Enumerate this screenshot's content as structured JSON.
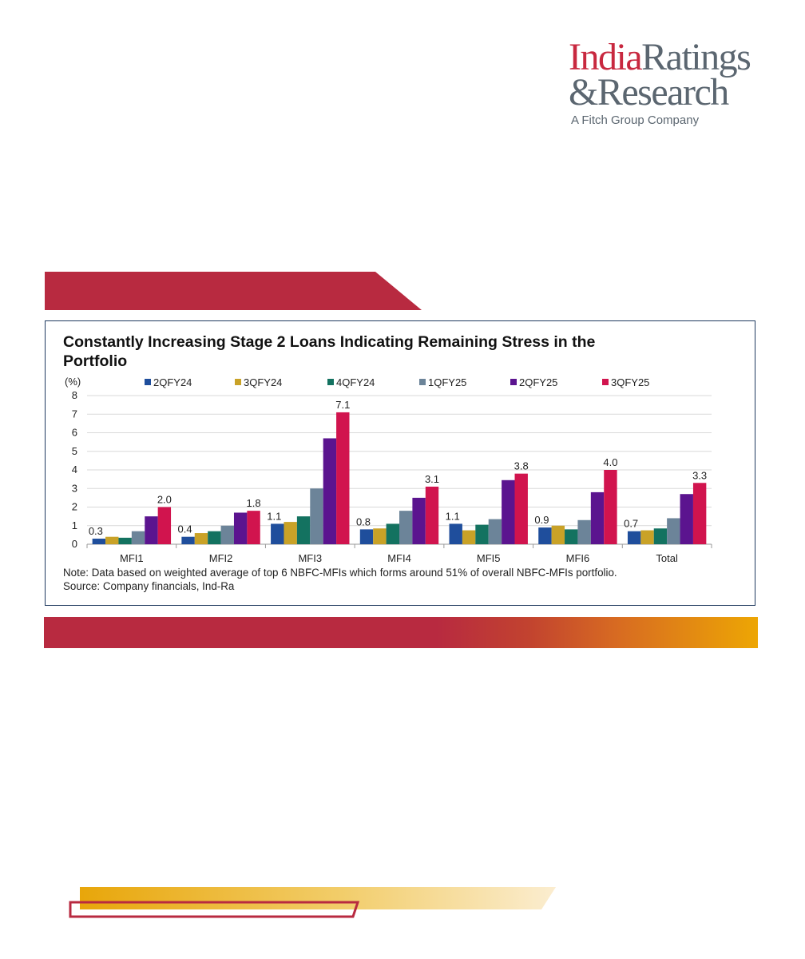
{
  "logo": {
    "word_india": "India",
    "word_ratings": "Ratings",
    "word_amp": "&",
    "word_research": "Research",
    "tagline": "A Fitch Group Company"
  },
  "colors": {
    "brand_red": "#b82a40",
    "brand_gold": "#eda604",
    "panel_border": "#1f3a5f"
  },
  "chart_data": {
    "type": "bar",
    "title": "Constantly Increasing Stage 2 Loans Indicating Remaining Stress in the Portfolio",
    "ylabel": "(%)",
    "ylim": [
      0,
      8
    ],
    "yticks": [
      "0",
      "1",
      "2",
      "3",
      "4",
      "5",
      "6",
      "7",
      "8"
    ],
    "grid": true,
    "legend_position": "top",
    "categories": [
      "MFI1",
      "MFI2",
      "MFI3",
      "MFI4",
      "MFI5",
      "MFI6",
      "Total"
    ],
    "series": [
      {
        "name": "2QFY24",
        "color": "#1f4e9c",
        "values": [
          0.3,
          0.4,
          1.1,
          0.8,
          1.1,
          0.9,
          0.7
        ]
      },
      {
        "name": "3QFY24",
        "color": "#c9a227",
        "values": [
          0.4,
          0.6,
          1.2,
          0.85,
          0.75,
          1.0,
          0.75
        ]
      },
      {
        "name": "4QFY24",
        "color": "#137260",
        "values": [
          0.35,
          0.7,
          1.5,
          1.1,
          1.05,
          0.8,
          0.85
        ]
      },
      {
        "name": "1QFY25",
        "color": "#6c8499",
        "values": [
          0.7,
          1.0,
          3.0,
          1.8,
          1.35,
          1.3,
          1.4
        ]
      },
      {
        "name": "2QFY25",
        "color": "#5b148f",
        "values": [
          1.5,
          1.7,
          5.7,
          2.5,
          3.45,
          2.8,
          2.7
        ]
      },
      {
        "name": "3QFY25",
        "color": "#d1144e",
        "values": [
          2.0,
          1.8,
          7.1,
          3.1,
          3.8,
          4.0,
          3.3
        ]
      }
    ],
    "data_labels": [
      {
        "category": "MFI1",
        "series": "2QFY24",
        "text": "0.3"
      },
      {
        "category": "MFI1",
        "series": "3QFY25",
        "text": "2.0"
      },
      {
        "category": "MFI2",
        "series": "2QFY24",
        "text": "0.4"
      },
      {
        "category": "MFI2",
        "series": "3QFY25",
        "text": "1.8"
      },
      {
        "category": "MFI3",
        "series": "2QFY24",
        "text": "1.1"
      },
      {
        "category": "MFI3",
        "series": "3QFY25",
        "text": "7.1"
      },
      {
        "category": "MFI4",
        "series": "2QFY24",
        "text": "0.8"
      },
      {
        "category": "MFI4",
        "series": "3QFY25",
        "text": "3.1"
      },
      {
        "category": "MFI5",
        "series": "2QFY24",
        "text": "1.1"
      },
      {
        "category": "MFI5",
        "series": "3QFY25",
        "text": "3.8"
      },
      {
        "category": "MFI6",
        "series": "2QFY24",
        "text": "0.9"
      },
      {
        "category": "MFI6",
        "series": "3QFY25",
        "text": "4.0"
      },
      {
        "category": "Total",
        "series": "2QFY24",
        "text": "0.7"
      },
      {
        "category": "Total",
        "series": "3QFY25",
        "text": "3.3"
      }
    ],
    "note": "Note: Data based on weighted average of  top 6 NBFC-MFIs which forms around 51% of overall NBFC-MFIs portfolio.",
    "source": "Source: Company financials, Ind-Ra"
  }
}
